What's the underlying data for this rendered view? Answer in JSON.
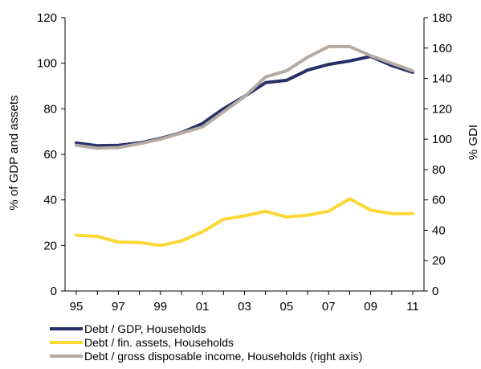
{
  "chart_data": {
    "type": "line",
    "title": "",
    "x": [
      "95",
      "96",
      "97",
      "98",
      "99",
      "00",
      "01",
      "02",
      "03",
      "04",
      "05",
      "06",
      "07",
      "08",
      "09",
      "10",
      "11"
    ],
    "x_tick_labels": [
      "95",
      "97",
      "99",
      "01",
      "03",
      "05",
      "07",
      "09",
      "11"
    ],
    "ylabel_left": "% of GDP and assets",
    "ylabel_right": "% GDI",
    "ylim_left": [
      0,
      120
    ],
    "ylim_right": [
      0,
      180
    ],
    "yticks_left": [
      "0",
      "20",
      "40",
      "60",
      "80",
      "100",
      "120"
    ],
    "yticks_right": [
      "0",
      "20",
      "40",
      "60",
      "80",
      "100",
      "120",
      "140",
      "160",
      "180"
    ],
    "grid": false,
    "legend_position": "bottom",
    "series": [
      {
        "name": "Debt / GDP, Households",
        "axis": "left",
        "color": "#27306b",
        "values": [
          65,
          63.8,
          64,
          65,
          67,
          69.5,
          73.5,
          80,
          85.5,
          91.5,
          92.5,
          97,
          99.5,
          101,
          103,
          99,
          96
        ]
      },
      {
        "name": "Debt / fin. assets, Households",
        "axis": "left",
        "color": "#fcd837",
        "values": [
          24.5,
          24,
          21.5,
          21.3,
          20,
          22,
          26,
          31.5,
          33,
          35,
          32.5,
          33.3,
          35,
          40.5,
          35.5,
          34,
          34
        ]
      },
      {
        "name": "Debt / gross disposable income, Households (right axis)",
        "axis": "right",
        "color": "#b5aba2",
        "values": [
          96,
          94,
          94.5,
          97,
          100,
          104,
          108,
          118,
          128,
          141,
          145,
          154,
          161,
          161,
          155,
          150,
          145
        ]
      }
    ]
  }
}
